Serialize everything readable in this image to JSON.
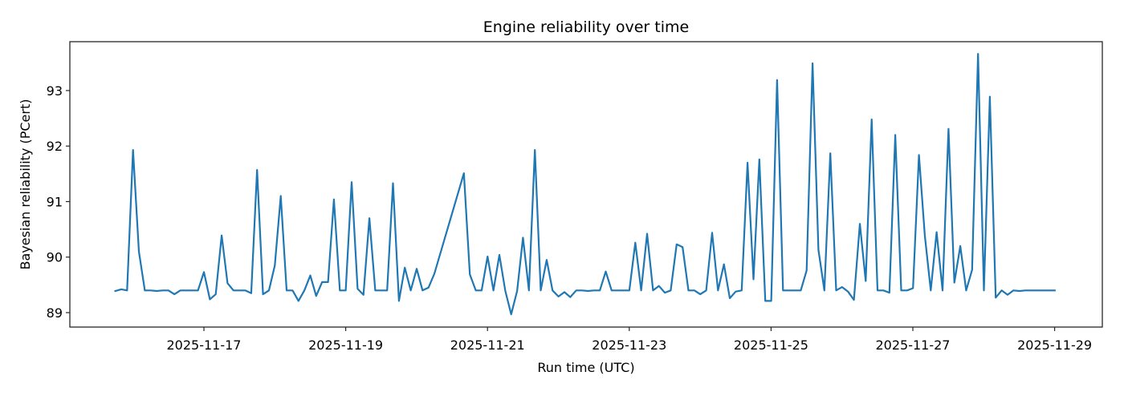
{
  "chart_data": {
    "type": "line",
    "title": "Engine reliability over time",
    "xlabel": "Run time (UTC)",
    "ylabel": "Bayesian reliability (PCert)",
    "x_start": "2025-11-15T18:00",
    "x_step_hours": 2,
    "x_tick_labels": [
      "2025-11-17",
      "2025-11-19",
      "2025-11-21",
      "2025-11-23",
      "2025-11-25",
      "2025-11-27",
      "2025-11-29"
    ],
    "y_ticks": [
      89,
      90,
      91,
      92,
      93
    ],
    "ylim": [
      88.74,
      93.88
    ],
    "xlim": [
      "2025-11-14T22:40",
      "2025-11-29T16:00"
    ],
    "grid": false,
    "legend": null,
    "line_color": "#1f77b4",
    "series": [
      {
        "name": "PCert",
        "points": [
          [
            0,
            89.39
          ],
          [
            1,
            89.42
          ],
          [
            2,
            89.4
          ],
          [
            3,
            91.93
          ],
          [
            4,
            90.1
          ],
          [
            5,
            89.4
          ],
          [
            6,
            89.4
          ],
          [
            7,
            89.39
          ],
          [
            8,
            89.4
          ],
          [
            9,
            89.4
          ],
          [
            10,
            89.33
          ],
          [
            11,
            89.4
          ],
          [
            12,
            89.4
          ],
          [
            13,
            89.4
          ],
          [
            14,
            89.4
          ],
          [
            15,
            89.73
          ],
          [
            16,
            89.24
          ],
          [
            17,
            89.33
          ],
          [
            18,
            90.39
          ],
          [
            19,
            89.53
          ],
          [
            20,
            89.4
          ],
          [
            21,
            89.4
          ],
          [
            22,
            89.4
          ],
          [
            23,
            89.35
          ],
          [
            24,
            91.57
          ],
          [
            25,
            89.33
          ],
          [
            26,
            89.4
          ],
          [
            27,
            89.85
          ],
          [
            28,
            91.1
          ],
          [
            29,
            89.4
          ],
          [
            30,
            89.4
          ],
          [
            31,
            89.21
          ],
          [
            32,
            89.4
          ],
          [
            33,
            89.67
          ],
          [
            34,
            89.3
          ],
          [
            35,
            89.55
          ],
          [
            36,
            89.55
          ],
          [
            37,
            91.04
          ],
          [
            38,
            89.4
          ],
          [
            39,
            89.4
          ],
          [
            40,
            91.35
          ],
          [
            41,
            89.43
          ],
          [
            42,
            89.32
          ],
          [
            43,
            90.7
          ],
          [
            44,
            89.4
          ],
          [
            45,
            89.4
          ],
          [
            46,
            89.4
          ],
          [
            47,
            91.33
          ],
          [
            48,
            89.21
          ],
          [
            49,
            89.81
          ],
          [
            50,
            89.4
          ],
          [
            51,
            89.79
          ],
          [
            52,
            89.4
          ],
          [
            53,
            89.45
          ],
          [
            54,
            89.7
          ],
          [
            59,
            91.51
          ],
          [
            60,
            89.69
          ],
          [
            61,
            89.4
          ],
          [
            62,
            89.4
          ],
          [
            63,
            90.01
          ],
          [
            64,
            89.4
          ],
          [
            65,
            90.04
          ],
          [
            66,
            89.39
          ],
          [
            67,
            88.97
          ],
          [
            68,
            89.39
          ],
          [
            69,
            90.35
          ],
          [
            70,
            89.4
          ],
          [
            71,
            91.93
          ],
          [
            72,
            89.4
          ],
          [
            73,
            89.95
          ],
          [
            74,
            89.4
          ],
          [
            75,
            89.29
          ],
          [
            76,
            89.37
          ],
          [
            77,
            89.28
          ],
          [
            78,
            89.4
          ],
          [
            79,
            89.4
          ],
          [
            80,
            89.39
          ],
          [
            81,
            89.4
          ],
          [
            82,
            89.4
          ],
          [
            83,
            89.74
          ],
          [
            84,
            89.4
          ],
          [
            85,
            89.4
          ],
          [
            86,
            89.4
          ],
          [
            87,
            89.4
          ],
          [
            88,
            90.26
          ],
          [
            89,
            89.4
          ],
          [
            90,
            90.42
          ],
          [
            91,
            89.4
          ],
          [
            92,
            89.48
          ],
          [
            93,
            89.36
          ],
          [
            94,
            89.4
          ],
          [
            95,
            90.23
          ],
          [
            96,
            90.18
          ],
          [
            97,
            89.4
          ],
          [
            98,
            89.4
          ],
          [
            99,
            89.33
          ],
          [
            100,
            89.4
          ],
          [
            101,
            90.44
          ],
          [
            102,
            89.4
          ],
          [
            103,
            89.87
          ],
          [
            104,
            89.26
          ],
          [
            105,
            89.38
          ],
          [
            106,
            89.4
          ],
          [
            107,
            91.7
          ],
          [
            108,
            89.6
          ],
          [
            109,
            91.76
          ],
          [
            110,
            89.21
          ],
          [
            111,
            89.21
          ],
          [
            112,
            93.19
          ],
          [
            113,
            89.4
          ],
          [
            114,
            89.4
          ],
          [
            115,
            89.4
          ],
          [
            116,
            89.4
          ],
          [
            117,
            89.76
          ],
          [
            118,
            93.49
          ],
          [
            119,
            90.13
          ],
          [
            120,
            89.4
          ],
          [
            121,
            91.87
          ],
          [
            122,
            89.4
          ],
          [
            123,
            89.46
          ],
          [
            124,
            89.38
          ],
          [
            125,
            89.23
          ],
          [
            126,
            90.6
          ],
          [
            127,
            89.57
          ],
          [
            128,
            92.48
          ],
          [
            129,
            89.4
          ],
          [
            130,
            89.4
          ],
          [
            131,
            89.36
          ],
          [
            132,
            92.2
          ],
          [
            133,
            89.4
          ],
          [
            134,
            89.4
          ],
          [
            135,
            89.44
          ],
          [
            136,
            91.84
          ],
          [
            137,
            90.39
          ],
          [
            138,
            89.4
          ],
          [
            139,
            90.45
          ],
          [
            140,
            89.4
          ],
          [
            141,
            92.31
          ],
          [
            142,
            89.54
          ],
          [
            143,
            90.2
          ],
          [
            144,
            89.4
          ],
          [
            145,
            89.77
          ],
          [
            146,
            93.66
          ],
          [
            147,
            89.4
          ],
          [
            148,
            92.89
          ],
          [
            149,
            89.27
          ],
          [
            150,
            89.4
          ],
          [
            151,
            89.32
          ],
          [
            152,
            89.4
          ],
          [
            153,
            89.39
          ],
          [
            154,
            89.4
          ],
          [
            155,
            89.4
          ],
          [
            156,
            89.4
          ],
          [
            157,
            89.4
          ],
          [
            158,
            89.4
          ],
          [
            159,
            89.4
          ]
        ]
      }
    ]
  }
}
